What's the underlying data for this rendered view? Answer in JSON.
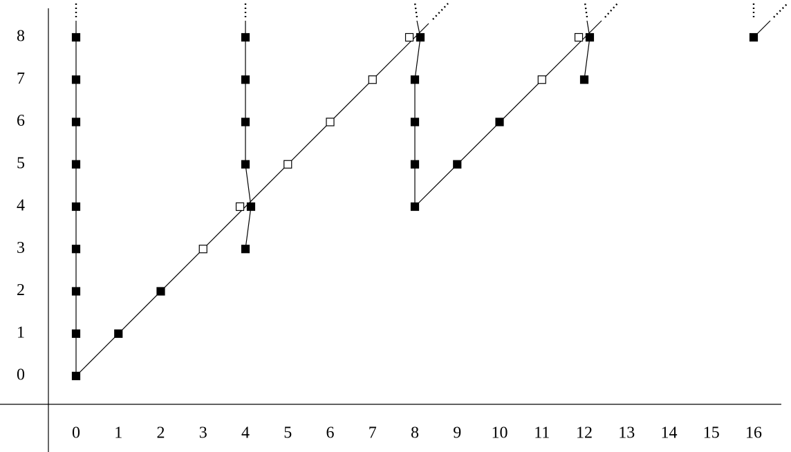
{
  "x_axis": {
    "labels": [
      0,
      1,
      2,
      3,
      4,
      5,
      6,
      7,
      8,
      9,
      10,
      11,
      12,
      13,
      14,
      15,
      16
    ]
  },
  "y_axis": {
    "labels": [
      0,
      1,
      2,
      3,
      4,
      5,
      6,
      7,
      8
    ]
  },
  "nodes": [
    {
      "x": 0,
      "y": 0,
      "filled": true
    },
    {
      "x": 0,
      "y": 1,
      "filled": true
    },
    {
      "x": 0,
      "y": 2,
      "filled": true
    },
    {
      "x": 0,
      "y": 3,
      "filled": true
    },
    {
      "x": 0,
      "y": 4,
      "filled": true
    },
    {
      "x": 0,
      "y": 5,
      "filled": true
    },
    {
      "x": 0,
      "y": 6,
      "filled": true
    },
    {
      "x": 0,
      "y": 7,
      "filled": true
    },
    {
      "x": 0,
      "y": 8,
      "filled": true
    },
    {
      "x": 1,
      "y": 1,
      "filled": true
    },
    {
      "x": 2,
      "y": 2,
      "filled": true
    },
    {
      "x": 3,
      "y": 3,
      "filled": false
    },
    {
      "x": 3.87,
      "y": 4,
      "filled": false
    },
    {
      "x": 5,
      "y": 5,
      "filled": false
    },
    {
      "x": 6,
      "y": 6,
      "filled": false
    },
    {
      "x": 7,
      "y": 7,
      "filled": false
    },
    {
      "x": 7.87,
      "y": 8,
      "filled": false
    },
    {
      "x": 4,
      "y": 3,
      "filled": true
    },
    {
      "x": 4.13,
      "y": 4,
      "filled": true
    },
    {
      "x": 4,
      "y": 5,
      "filled": true
    },
    {
      "x": 4,
      "y": 6,
      "filled": true
    },
    {
      "x": 4,
      "y": 7,
      "filled": true
    },
    {
      "x": 4,
      "y": 8,
      "filled": true
    },
    {
      "x": 8,
      "y": 4,
      "filled": true
    },
    {
      "x": 8,
      "y": 5,
      "filled": true
    },
    {
      "x": 8,
      "y": 6,
      "filled": true
    },
    {
      "x": 8,
      "y": 7,
      "filled": true
    },
    {
      "x": 8.13,
      "y": 8,
      "filled": true
    },
    {
      "x": 9,
      "y": 5,
      "filled": true
    },
    {
      "x": 10,
      "y": 6,
      "filled": true
    },
    {
      "x": 11,
      "y": 7,
      "filled": false
    },
    {
      "x": 11.87,
      "y": 8,
      "filled": false
    },
    {
      "x": 12,
      "y": 7,
      "filled": true
    },
    {
      "x": 12.13,
      "y": 8,
      "filled": true
    },
    {
      "x": 16,
      "y": 8,
      "filled": true
    }
  ]
}
